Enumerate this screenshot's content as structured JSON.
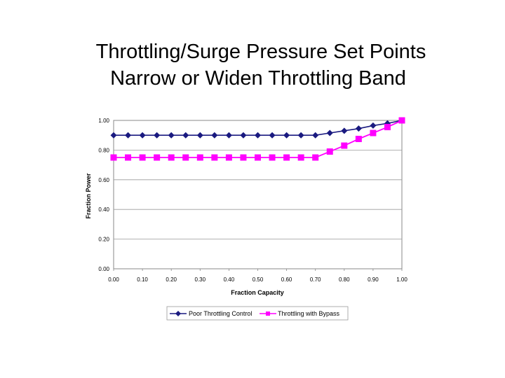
{
  "slide": {
    "title_line1": "Throttling/Surge Pressure Set Points",
    "title_line2": "Narrow or Widen Throttling Band"
  },
  "colors": {
    "series1": "#1a1a80",
    "series2": "#ff00ff",
    "grid": "#9a9a9a"
  },
  "chart_data": {
    "type": "line",
    "title": "",
    "xlabel": "Fraction Capacity",
    "ylabel": "Fraction Power",
    "xlim": [
      0,
      1
    ],
    "ylim": [
      0,
      1
    ],
    "x_ticks": [
      "0.00",
      "0.10",
      "0.20",
      "0.30",
      "0.40",
      "0.50",
      "0.60",
      "0.70",
      "0.80",
      "0.90",
      "1.00"
    ],
    "y_ticks": [
      "0.00",
      "0.20",
      "0.40",
      "0.60",
      "0.80",
      "1.00"
    ],
    "grid": true,
    "legend_position": "bottom",
    "x": [
      0.0,
      0.05,
      0.1,
      0.15,
      0.2,
      0.25,
      0.3,
      0.35,
      0.4,
      0.45,
      0.5,
      0.55,
      0.6,
      0.65,
      0.7,
      0.75,
      0.8,
      0.85,
      0.9,
      0.95,
      1.0
    ],
    "series": [
      {
        "name": "Poor Throttling Control",
        "marker": "diamond",
        "values": [
          0.9,
          0.9,
          0.9,
          0.9,
          0.9,
          0.9,
          0.9,
          0.9,
          0.9,
          0.9,
          0.9,
          0.9,
          0.9,
          0.9,
          0.9,
          0.915,
          0.93,
          0.945,
          0.965,
          0.98,
          1.0
        ]
      },
      {
        "name": "Throttling with Bypass",
        "marker": "square",
        "values": [
          0.75,
          0.75,
          0.75,
          0.75,
          0.75,
          0.75,
          0.75,
          0.75,
          0.75,
          0.75,
          0.75,
          0.75,
          0.75,
          0.75,
          0.75,
          0.79,
          0.83,
          0.875,
          0.915,
          0.955,
          1.0
        ]
      }
    ]
  }
}
